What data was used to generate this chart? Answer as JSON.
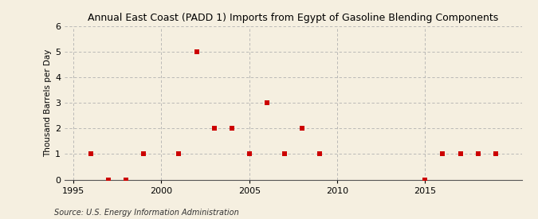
{
  "title": "Annual East Coast (PADD 1) Imports from Egypt of Gasoline Blending Components",
  "ylabel": "Thousand Barrels per Day",
  "source": "Source: U.S. Energy Information Administration",
  "background_color": "#f5efe0",
  "plot_bg_color": "#f5efe0",
  "marker_color": "#cc0000",
  "grid_color": "#b0b0b0",
  "xlim": [
    1994.5,
    2020.5
  ],
  "ylim": [
    0,
    6
  ],
  "xticks": [
    1995,
    2000,
    2005,
    2010,
    2015
  ],
  "yticks": [
    0,
    1,
    2,
    3,
    4,
    5,
    6
  ],
  "data_x": [
    1996,
    1997,
    1998,
    1999,
    2001,
    2002,
    2003,
    2004,
    2005,
    2006,
    2007,
    2008,
    2009,
    2015,
    2016,
    2017,
    2018,
    2019
  ],
  "data_y": [
    1,
    0,
    0,
    1,
    1,
    5,
    2,
    2,
    1,
    3,
    1,
    2,
    1,
    0,
    1,
    1,
    1,
    1
  ],
  "title_fontsize": 9,
  "ylabel_fontsize": 7.5,
  "tick_fontsize": 8,
  "source_fontsize": 7,
  "marker_size": 18
}
